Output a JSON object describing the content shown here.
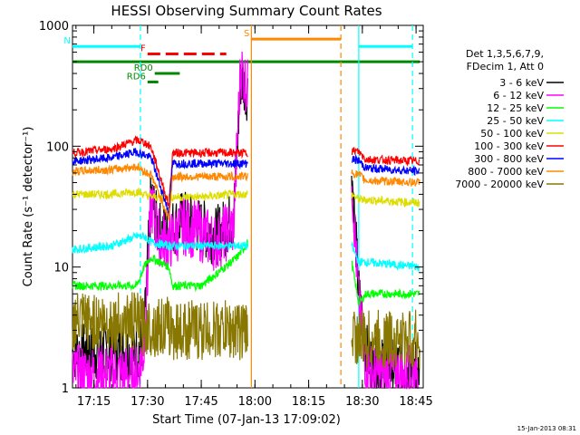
{
  "chart_data": {
    "type": "line",
    "title": "HESSI Observing Summary Count Rates",
    "xlabel": "Start Time (07-Jan-13 17:09:02)",
    "ylabel": "Count Rate (s⁻¹ detector⁻¹)",
    "yscale": "log",
    "ylim": [
      1,
      1000
    ],
    "xlim": [
      "17:09:02",
      "18:47:00"
    ],
    "grid": false,
    "x_ticks": [
      "17:15",
      "17:30",
      "17:45",
      "18:00",
      "18:15",
      "18:30",
      "18:45"
    ],
    "y_ticks": [
      "1",
      "10",
      "100",
      "1000"
    ],
    "date_stamp": "15-Jan-2013 08:31",
    "legend": {
      "placement": "right",
      "header": [
        "Det 1,3,5,6,7,9,",
        "FDecim 1, Att 0"
      ],
      "entries": [
        {
          "label": "3 - 6 keV",
          "color": "#000000"
        },
        {
          "label": "6 - 12 keV",
          "color": "#ff00ff"
        },
        {
          "label": "12 - 25 keV",
          "color": "#00ff00"
        },
        {
          "label": "25 - 50 keV",
          "color": "#00ffff"
        },
        {
          "label": "50 - 100 keV",
          "color": "#dddd00"
        },
        {
          "label": "100 - 300 keV",
          "color": "#ff0000"
        },
        {
          "label": "300 - 800 keV",
          "color": "#0000ff"
        },
        {
          "label": "800 - 7000 keV",
          "color": "#ff8800"
        },
        {
          "label": "7000 - 20000 keV",
          "color": "#887700"
        }
      ]
    },
    "flags": [
      {
        "label": "N",
        "color": "#00ffff",
        "level": 670,
        "segments": [
          [
            "17:09",
            "17:28"
          ],
          [
            "18:29",
            "18:44"
          ]
        ]
      },
      {
        "label": "F",
        "color": "#ff0000",
        "level": 580,
        "dashed": true,
        "segments": [
          [
            "17:30",
            "17:52"
          ]
        ]
      },
      {
        "label": "S",
        "color": "#ff8800",
        "level": 770,
        "segments": [
          [
            "17:59",
            "18:24"
          ]
        ]
      },
      {
        "label": "",
        "color": "#008800",
        "level": 500,
        "segments": [
          [
            "17:09",
            "18:46"
          ]
        ]
      },
      {
        "label": "RD0",
        "color": "#008800",
        "level": 400,
        "segments": [
          [
            "17:32",
            "17:39"
          ]
        ]
      },
      {
        "label": "RD6",
        "color": "#008800",
        "level": 340,
        "segments": [
          [
            "17:30",
            "17:33"
          ]
        ]
      }
    ],
    "vertical_markers": [
      {
        "time": "17:28",
        "color": "#00ffff",
        "dashed": true
      },
      {
        "time": "17:59",
        "color": "#ff8800",
        "dashed": false
      },
      {
        "time": "18:24",
        "color": "#ff8800",
        "dashed": true
      },
      {
        "time": "18:29",
        "color": "#00ffff",
        "dashed": false
      },
      {
        "time": "18:44",
        "color": "#00ffff",
        "dashed": true
      }
    ],
    "data_gap": [
      "17:58",
      "18:27"
    ],
    "series": [
      {
        "name": "3 - 6 keV",
        "color": "#000000",
        "x": [
          "17:09",
          "17:20",
          "17:27",
          "17:29",
          "17:31",
          "17:33",
          "17:36",
          "17:40",
          "17:44",
          "17:49",
          "17:54",
          "17:56",
          "17:58",
          "18:27",
          "18:29",
          "18:31",
          "18:33",
          "18:46"
        ],
        "y": [
          2,
          2,
          2,
          2.5,
          40,
          20,
          20,
          25,
          22,
          18,
          25,
          350,
          280,
          70,
          6,
          2,
          1.5,
          1.5
        ]
      },
      {
        "name": "6 - 12 keV",
        "color": "#ff00ff",
        "x": [
          "17:09",
          "17:20",
          "17:27",
          "17:29",
          "17:31",
          "17:33",
          "17:36",
          "17:40",
          "17:44",
          "17:49",
          "17:54",
          "17:56",
          "17:58",
          "18:27",
          "18:29",
          "18:31",
          "18:33",
          "18:46"
        ],
        "y": [
          1.3,
          1.3,
          1.3,
          2,
          35,
          18,
          16,
          22,
          20,
          16,
          22,
          450,
          300,
          60,
          5,
          1.5,
          1.3,
          1.3
        ]
      },
      {
        "name": "12 - 25 keV",
        "color": "#00ff00",
        "x": [
          "17:09",
          "17:20",
          "17:27",
          "17:29",
          "17:31",
          "17:36",
          "17:37",
          "17:45",
          "17:55",
          "17:58",
          "18:27",
          "18:29",
          "18:31",
          "18:46"
        ],
        "y": [
          7,
          7,
          7,
          10,
          12,
          10,
          7,
          7,
          12,
          16,
          11,
          5,
          6,
          6
        ]
      },
      {
        "name": "25 - 50 keV",
        "color": "#00ffff",
        "x": [
          "17:09",
          "17:20",
          "17:27",
          "17:29",
          "17:31",
          "17:36",
          "17:37",
          "17:45",
          "17:55",
          "17:58",
          "18:27",
          "18:29",
          "18:31",
          "18:46"
        ],
        "y": [
          14,
          15,
          18,
          18,
          16,
          15,
          15,
          15,
          15,
          15,
          15,
          11,
          11,
          10
        ]
      },
      {
        "name": "50 - 100 keV",
        "color": "#dddd00",
        "x": [
          "17:09",
          "17:20",
          "17:27",
          "17:29",
          "17:31",
          "17:36",
          "17:37",
          "17:45",
          "17:55",
          "17:58",
          "18:27",
          "18:29",
          "18:31",
          "18:46"
        ],
        "y": [
          40,
          40,
          42,
          40,
          38,
          38,
          38,
          38,
          40,
          40,
          40,
          36,
          36,
          34
        ]
      },
      {
        "name": "100 - 300 keV",
        "color": "#ff0000",
        "x": [
          "17:09",
          "17:20",
          "17:27",
          "17:29",
          "17:31",
          "17:36",
          "17:37",
          "17:45",
          "17:55",
          "17:58",
          "18:27",
          "18:29",
          "18:31",
          "18:46"
        ],
        "y": [
          88,
          95,
          112,
          108,
          98,
          32,
          88,
          88,
          88,
          88,
          92,
          90,
          78,
          75
        ]
      },
      {
        "name": "300 - 800 keV",
        "color": "#0000ff",
        "x": [
          "17:09",
          "17:20",
          "17:27",
          "17:29",
          "17:31",
          "17:36",
          "17:37",
          "17:45",
          "17:55",
          "17:58",
          "18:27",
          "18:29",
          "18:31",
          "18:46"
        ],
        "y": [
          75,
          80,
          90,
          85,
          80,
          28,
          72,
          72,
          72,
          72,
          78,
          76,
          66,
          62
        ]
      },
      {
        "name": "800 - 7000 keV",
        "color": "#ff8800",
        "x": [
          "17:09",
          "17:20",
          "17:27",
          "17:29",
          "17:31",
          "17:36",
          "17:37",
          "17:45",
          "17:55",
          "17:58",
          "18:27",
          "18:29",
          "18:31",
          "18:46"
        ],
        "y": [
          62,
          64,
          68,
          62,
          58,
          25,
          56,
          56,
          56,
          57,
          60,
          58,
          52,
          50
        ]
      },
      {
        "name": "7000 - 20000 keV",
        "color": "#887700",
        "x": [
          "17:09",
          "17:20",
          "17:27",
          "17:29",
          "17:31",
          "17:36",
          "17:37",
          "17:45",
          "17:55",
          "17:58",
          "18:27",
          "18:29",
          "18:31",
          "18:46"
        ],
        "y": [
          3.5,
          3.5,
          3.5,
          3.2,
          3.2,
          3.2,
          3,
          3,
          3,
          3,
          3,
          2.5,
          2.5,
          2.5
        ]
      }
    ]
  }
}
